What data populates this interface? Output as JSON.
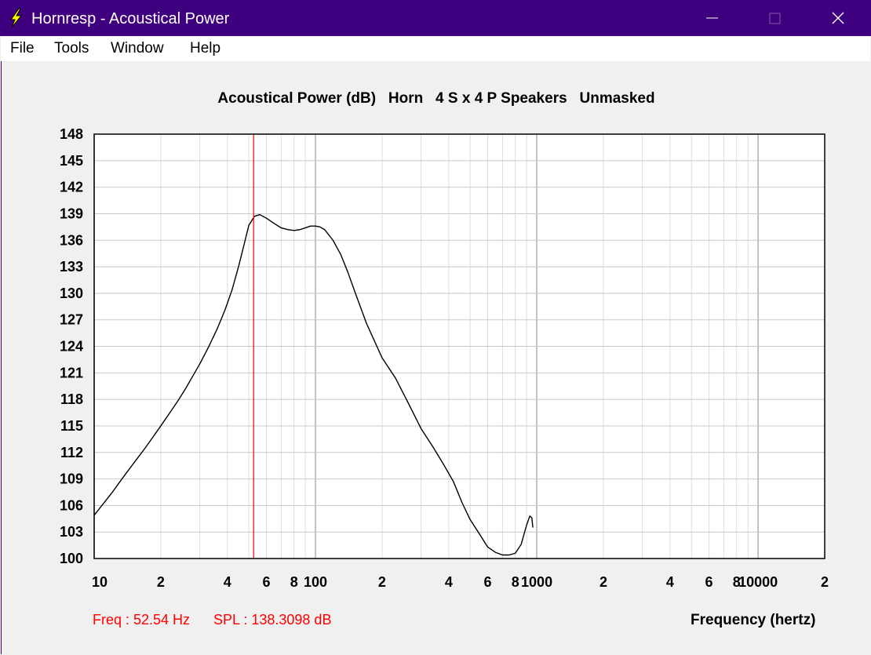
{
  "window": {
    "title": "Hornresp - Acoustical Power",
    "colors": {
      "titlebar": "#3f007f",
      "icon": "#ffff00"
    },
    "controls": [
      "minimize",
      "maximize",
      "close"
    ]
  },
  "menu": [
    {
      "label": "File"
    },
    {
      "label": "Tools"
    },
    {
      "label": "Window"
    },
    {
      "label": "Help"
    }
  ],
  "chart_title": "Acoustical Power (dB)   Horn   4 S x 4 P Speakers   Unmasked",
  "status": {
    "freq": "Freq : 52.54 Hz",
    "spl": "SPL : 138.3098 dB"
  },
  "chart_data": {
    "type": "line",
    "title": "Acoustical Power (dB)   Horn   4 S x 4 P Speakers   Unmasked",
    "xlabel": "Frequency (hertz)",
    "ylabel": "",
    "x_scale": "log",
    "xlim": [
      10,
      20000
    ],
    "ylim": [
      100,
      148
    ],
    "grid": true,
    "y_ticks": [
      148,
      145,
      142,
      139,
      136,
      133,
      130,
      127,
      124,
      121,
      118,
      115,
      112,
      109,
      106,
      103,
      100
    ],
    "x_ticks": [
      {
        "value": 10,
        "label": "10"
      },
      {
        "value": 20,
        "label": "2"
      },
      {
        "value": 40,
        "label": "4"
      },
      {
        "value": 60,
        "label": "6"
      },
      {
        "value": 80,
        "label": "8"
      },
      {
        "value": 100,
        "label": "100"
      },
      {
        "value": 200,
        "label": "2"
      },
      {
        "value": 400,
        "label": "4"
      },
      {
        "value": 600,
        "label": "6"
      },
      {
        "value": 800,
        "label": "8"
      },
      {
        "value": 1000,
        "label": "1000"
      },
      {
        "value": 2000,
        "label": "2"
      },
      {
        "value": 4000,
        "label": "4"
      },
      {
        "value": 6000,
        "label": "6"
      },
      {
        "value": 8000,
        "label": "8"
      },
      {
        "value": 10000,
        "label": "10000"
      },
      {
        "value": 20000,
        "label": "2"
      }
    ],
    "cursor": {
      "freq": 52.54,
      "spl": 138.3098,
      "color": "#ff0000"
    },
    "series": [
      {
        "color": "#000000",
        "x": [
          10,
          11,
          12,
          13,
          14,
          15,
          17,
          19,
          20,
          22,
          24,
          26,
          28,
          30,
          33,
          36,
          39,
          42,
          45,
          48,
          50,
          53,
          56,
          60,
          65,
          70,
          75,
          80,
          85,
          90,
          95,
          100,
          105,
          110,
          120,
          130,
          140,
          150,
          170,
          200,
          230,
          260,
          300,
          340,
          380,
          420,
          460,
          500,
          550,
          600,
          650,
          700,
          750,
          800,
          850,
          900,
          930,
          950,
          960
        ],
        "y": [
          104.9,
          106.2,
          107.4,
          108.6,
          109.7,
          110.7,
          112.5,
          114.2,
          115.0,
          116.5,
          117.9,
          119.3,
          120.7,
          122.0,
          124.0,
          126.0,
          128.1,
          130.4,
          133.1,
          135.9,
          137.7,
          138.7,
          138.9,
          138.5,
          137.9,
          137.4,
          137.2,
          137.1,
          137.2,
          137.4,
          137.6,
          137.6,
          137.5,
          137.2,
          136.0,
          134.4,
          132.4,
          130.3,
          126.6,
          122.7,
          120.4,
          117.8,
          114.7,
          112.6,
          110.6,
          108.7,
          106.3,
          104.4,
          102.8,
          101.3,
          100.7,
          100.4,
          100.4,
          100.6,
          101.6,
          103.8,
          104.8,
          104.6,
          103.5
        ]
      }
    ]
  }
}
